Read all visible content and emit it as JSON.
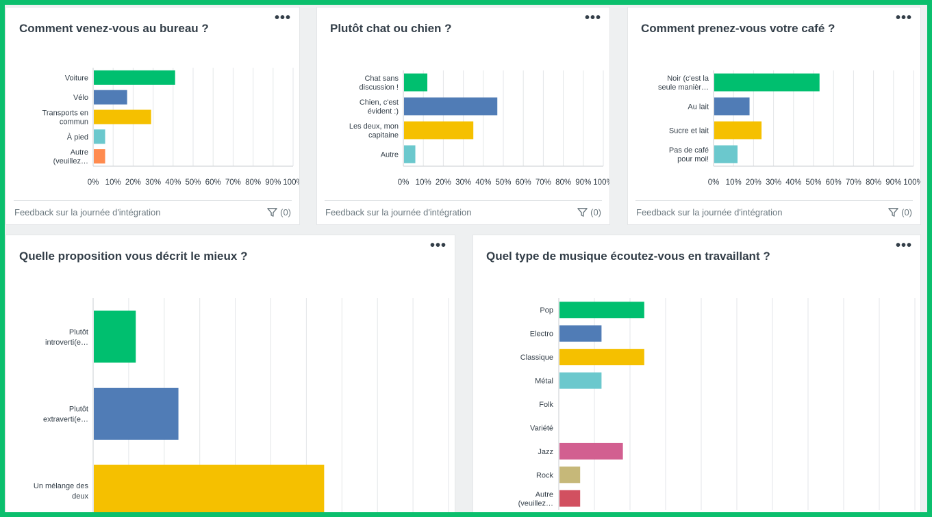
{
  "footer": {
    "survey_name": "Feedback sur la journée d'intégration",
    "filter_count": "(0)",
    "filter_icon": "filter-icon",
    "menu_icon": "more-icon",
    "menu_label": "•••"
  },
  "chart_data": [
    {
      "type": "bar",
      "orientation": "horizontal",
      "title": "Comment venez-vous au bureau ?",
      "categories": [
        "Voiture",
        "Vélo",
        "Transports en commun",
        "À pied",
        "Autre (veuillez…"
      ],
      "values": [
        41,
        17,
        29,
        6,
        6
      ],
      "colors": [
        "#00bf6f",
        "#507cb6",
        "#f5c000",
        "#6bc8cd",
        "#ff8b4f"
      ],
      "ticks": [
        "0%",
        "10%",
        "20%",
        "30%",
        "40%",
        "50%",
        "60%",
        "70%",
        "80%",
        "90%",
        "100%"
      ],
      "xlim": [
        0,
        100
      ],
      "grid": true
    },
    {
      "type": "bar",
      "orientation": "horizontal",
      "title": "Plutôt chat ou chien ?",
      "categories": [
        "Chat sans discussion !",
        "Chien, c'est évident :)",
        "Les deux, mon capitaine",
        "Autre"
      ],
      "values": [
        12,
        47,
        35,
        6
      ],
      "colors": [
        "#00bf6f",
        "#507cb6",
        "#f5c000",
        "#6bc8cd"
      ],
      "ticks": [
        "0%",
        "10%",
        "20%",
        "30%",
        "40%",
        "50%",
        "60%",
        "70%",
        "80%",
        "90%",
        "100%"
      ],
      "xlim": [
        0,
        100
      ],
      "grid": true
    },
    {
      "type": "bar",
      "orientation": "horizontal",
      "title": "Comment prenez-vous votre café ?",
      "categories": [
        "Noir (c'est la seule manièr…",
        "Au lait",
        "Sucre et lait",
        "Pas de café pour moi!"
      ],
      "values": [
        53,
        18,
        24,
        12
      ],
      "colors": [
        "#00bf6f",
        "#507cb6",
        "#f5c000",
        "#6bc8cd"
      ],
      "ticks": [
        "0%",
        "10%",
        "20%",
        "30%",
        "40%",
        "50%",
        "60%",
        "70%",
        "80%",
        "90%",
        "100%"
      ],
      "xlim": [
        0,
        100
      ],
      "grid": true
    },
    {
      "type": "bar",
      "orientation": "horizontal",
      "title": "Quelle proposition vous décrit le mieux ?",
      "categories": [
        "Plutôt introverti(e…",
        "Plutôt extraverti(e…",
        "Un mélange des deux"
      ],
      "values": [
        12,
        24,
        65
      ],
      "colors": [
        "#00bf6f",
        "#507cb6",
        "#f5c000"
      ],
      "xlim": [
        0,
        100
      ],
      "grid": true
    },
    {
      "type": "bar",
      "orientation": "horizontal",
      "title": "Quel type de musique écoutez-vous en travaillant ?",
      "categories": [
        "Pop",
        "Electro",
        "Classique",
        "Métal",
        "Folk",
        "Variété",
        "Jazz",
        "Rock",
        "Autre (veuillez…"
      ],
      "values": [
        24,
        12,
        24,
        12,
        0,
        0,
        18,
        6,
        6
      ],
      "colors": [
        "#00bf6f",
        "#507cb6",
        "#f5c000",
        "#6bc8cd",
        "#8b6fb5",
        "#9b9b9b",
        "#d25f90",
        "#c6b879",
        "#d25060"
      ],
      "xlim": [
        0,
        100
      ],
      "grid": true
    }
  ]
}
